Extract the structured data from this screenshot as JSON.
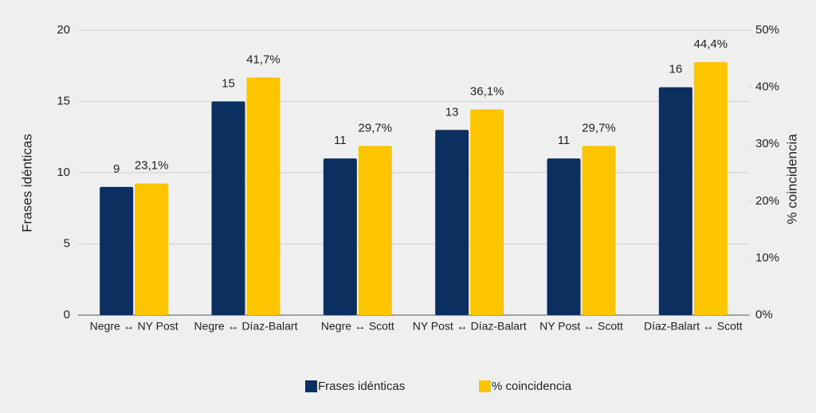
{
  "chart_data": {
    "type": "bar",
    "categories": [
      "Negre ↔ NY Post",
      "Negre ↔ Díaz-Balart",
      "Negre ↔ Scott",
      "NY Post ↔ Díaz-Balart",
      "NY Post ↔ Scott",
      "Díaz-Balart ↔ Scott"
    ],
    "y_label": "Frases idénticas",
    "y2_label": "% coincidencia",
    "series": [
      {
        "name": "Frases idénticas",
        "color": "#0b2f5e",
        "values": [
          9,
          15,
          11,
          13,
          11,
          16
        ]
      },
      {
        "name": "% coincidencia",
        "color": "#fcc500",
        "axis": "y2",
        "values": [
          23.1,
          41.7,
          29.7,
          36.1,
          29.7,
          44.4
        ],
        "value_labels": [
          "23,1%",
          "41,7%",
          "29,7%",
          "36,1%",
          "29,7%",
          "44,4%"
        ]
      }
    ],
    "ylim": [
      0,
      20
    ],
    "yticks": [
      0,
      5,
      10,
      15,
      20
    ],
    "y2lim": [
      0,
      50
    ],
    "y2ticks": [
      {
        "value": 0,
        "label": "0%"
      },
      {
        "value": 10,
        "label": "10%"
      },
      {
        "value": 20,
        "label": "20%"
      },
      {
        "value": 30,
        "label": "30%"
      },
      {
        "value": 40,
        "label": "40%"
      },
      {
        "value": 50,
        "label": "50%"
      }
    ],
    "grid": true,
    "legend": "bottom"
  }
}
